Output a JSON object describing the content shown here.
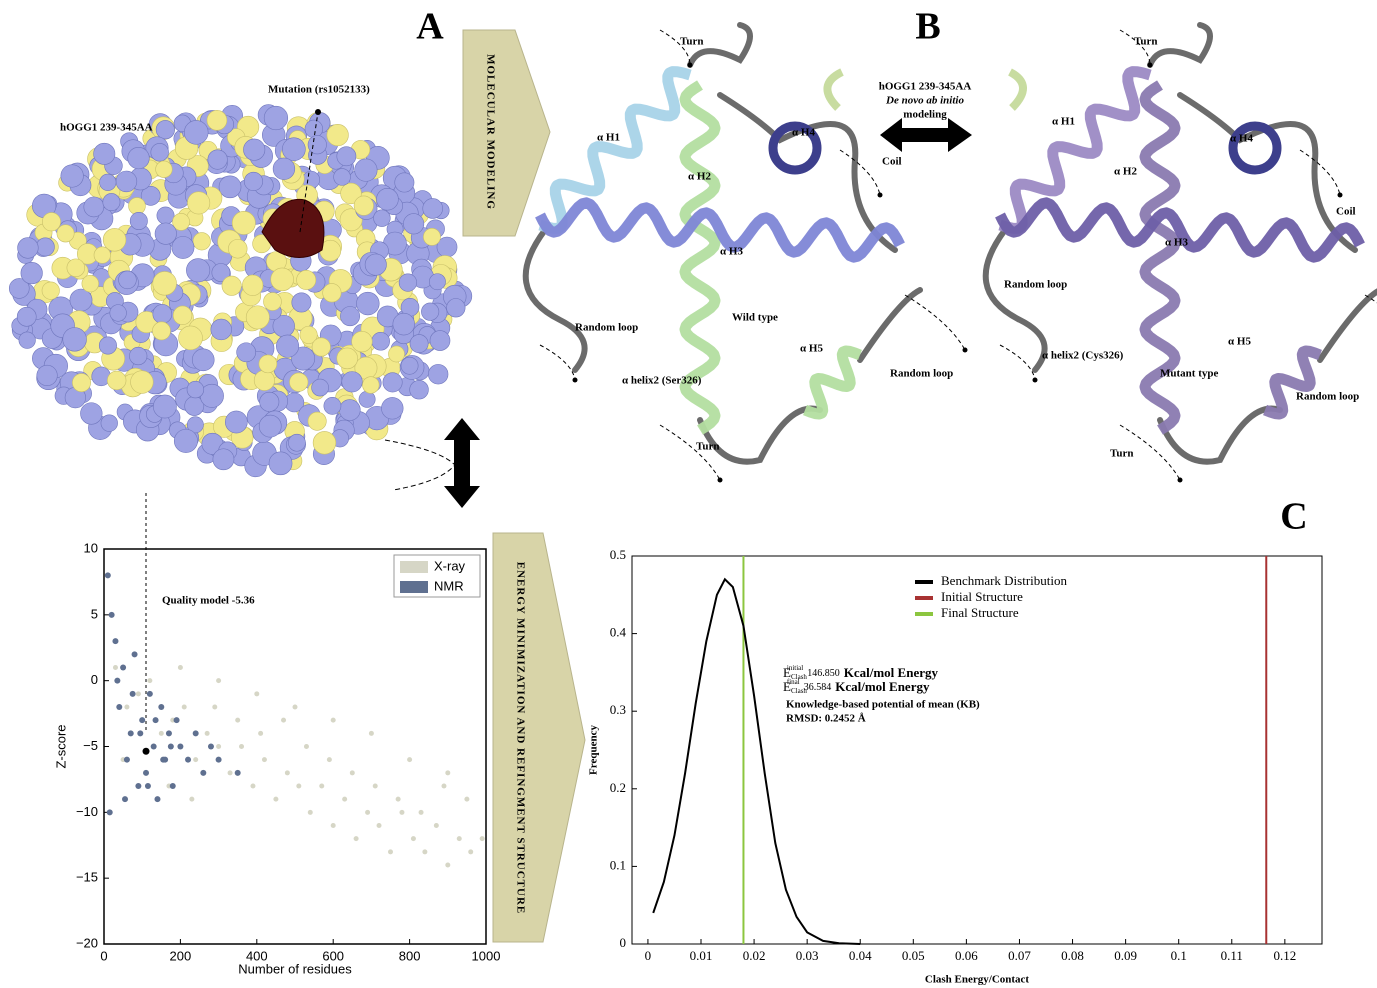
{
  "panels": {
    "labels": [
      "A",
      "B",
      "C"
    ],
    "left_box": "MOLECULAR MODELING",
    "right_box": "ENERGY MINIMIZATION AND REFINGMENT STRUCTURE",
    "surface": {
      "title": "hOGG1 239-345AA",
      "mutation": "Mutation (rs1052133)"
    },
    "wild": [
      "Turn",
      "α H1",
      "α H2",
      "α H4",
      "Coil",
      "α H3",
      "Random loop",
      "Wild type",
      "α H5",
      "α helix2 (Ser326)",
      "Random loop",
      "Turn"
    ],
    "center": {
      "title": "hOGG1 239-345AA",
      "method": "De novo ab initio",
      "modeling": "modeling"
    },
    "mutant": [
      "Turn",
      "α H1",
      "α H4",
      "α H2",
      "Coil",
      "α H3",
      "Random loop",
      "α H5",
      "α helix2 (Cys326)",
      "Mutant type",
      "Random loop",
      "Turn"
    ]
  },
  "chart_data": [
    {
      "type": "scatter",
      "xlabel": "Number of residues",
      "ylabel": "Z-score",
      "xlim": [
        0,
        1000
      ],
      "ylim": [
        -20,
        10
      ],
      "xticks": [
        0,
        200,
        400,
        600,
        800,
        1000
      ],
      "yticks": [
        {
          "value": -20,
          "label": "−20"
        },
        {
          "value": -15,
          "label": "−15"
        },
        {
          "value": -10,
          "label": "−10"
        },
        {
          "value": -5,
          "label": "−5"
        },
        0,
        5,
        10
      ],
      "legend": "upper right",
      "series": [
        {
          "name": "X-ray",
          "color": "#d6d6c6",
          "x": [
            30,
            60,
            90,
            120,
            150,
            180,
            210,
            240,
            270,
            300,
            330,
            360,
            390,
            420,
            450,
            480,
            510,
            540,
            570,
            600,
            630,
            660,
            690,
            720,
            750,
            780,
            810,
            840,
            870,
            900,
            930,
            960,
            990,
            50,
            110,
            170,
            230,
            290,
            350,
            410,
            470,
            530,
            590,
            650,
            710,
            770,
            830,
            890,
            950,
            200,
            300,
            400,
            500,
            600,
            700,
            800,
            900
          ],
          "values": [
            1,
            -2,
            -1,
            0,
            -4,
            -3,
            -2,
            -6,
            -4,
            -5,
            -7,
            -5,
            -8,
            -6,
            -9,
            -7,
            -8,
            -10,
            -8,
            -11,
            -9,
            -12,
            -10,
            -11,
            -13,
            -10,
            -12,
            -13,
            -11,
            -14,
            -12,
            -13,
            -12,
            -6,
            -7,
            -8,
            -9,
            -2,
            -3,
            -4,
            -3,
            -5,
            -6,
            -7,
            -8,
            -9,
            -10,
            -8,
            -9,
            1,
            0,
            -1,
            -2,
            -3,
            -4,
            -6,
            -7
          ]
        },
        {
          "name": "NMR",
          "color": "#5f7090",
          "x": [
            10,
            20,
            30,
            40,
            50,
            60,
            70,
            80,
            90,
            100,
            110,
            120,
            130,
            140,
            150,
            160,
            170,
            180,
            190,
            200,
            220,
            240,
            260,
            280,
            300,
            350,
            15,
            35,
            55,
            75,
            95,
            115,
            135,
            155,
            175
          ],
          "values": [
            8,
            5,
            3,
            -2,
            1,
            -6,
            -4,
            2,
            -8,
            -3,
            -7,
            -1,
            -5,
            -9,
            -2,
            -6,
            -4,
            -8,
            -3,
            -5,
            -6,
            -4,
            -7,
            -5,
            -6,
            -7,
            -10,
            0,
            -9,
            -1,
            -4,
            -8,
            -3,
            -6,
            -5
          ]
        }
      ],
      "highlight": {
        "label": "Quality model -5.36",
        "x": 110,
        "y": -5.36
      }
    },
    {
      "type": "line",
      "xlabel": "Clash Energy/Contact",
      "ylabel": "Frequency",
      "xlim": [
        -0.003,
        0.127
      ],
      "ylim": [
        0,
        0.5
      ],
      "xticks": [
        0,
        0.01,
        0.02,
        0.03,
        0.04,
        0.05,
        0.06,
        0.07,
        0.08,
        0.09,
        0.1,
        0.11,
        0.12
      ],
      "yticks": [
        0,
        0.1,
        0.2,
        0.3,
        0.4,
        0.5
      ],
      "series": [
        {
          "name": "Benchmark Distribution",
          "color": "#000000",
          "x": [
            0.001,
            0.003,
            0.005,
            0.007,
            0.009,
            0.011,
            0.013,
            0.0145,
            0.016,
            0.018,
            0.02,
            0.022,
            0.024,
            0.026,
            0.028,
            0.03,
            0.033,
            0.036,
            0.04
          ],
          "values": [
            0.04,
            0.08,
            0.14,
            0.22,
            0.31,
            0.39,
            0.45,
            0.47,
            0.46,
            0.41,
            0.32,
            0.22,
            0.13,
            0.07,
            0.035,
            0.015,
            0.004,
            0.001,
            0
          ]
        }
      ],
      "vlines": [
        {
          "name": "Initial Structure",
          "color": "#a83232",
          "x": 0.1165
        },
        {
          "name": "Final Structure",
          "color": "#8cc63f",
          "x": 0.018
        }
      ],
      "annotations": [
        {
          "symbol": "E",
          "sub": "Clash",
          "sup": "initial",
          "value": "146.850",
          "unit": "Kcal/mol Energy"
        },
        {
          "symbol": "E",
          "sub": "Clash",
          "sup": "final",
          "value": "36.584",
          "unit": "Kcal/mol Energy"
        }
      ],
      "notes": [
        "Knowledge-based potential of mean (KB)",
        "RMSD: 0.2452 Å"
      ]
    }
  ]
}
